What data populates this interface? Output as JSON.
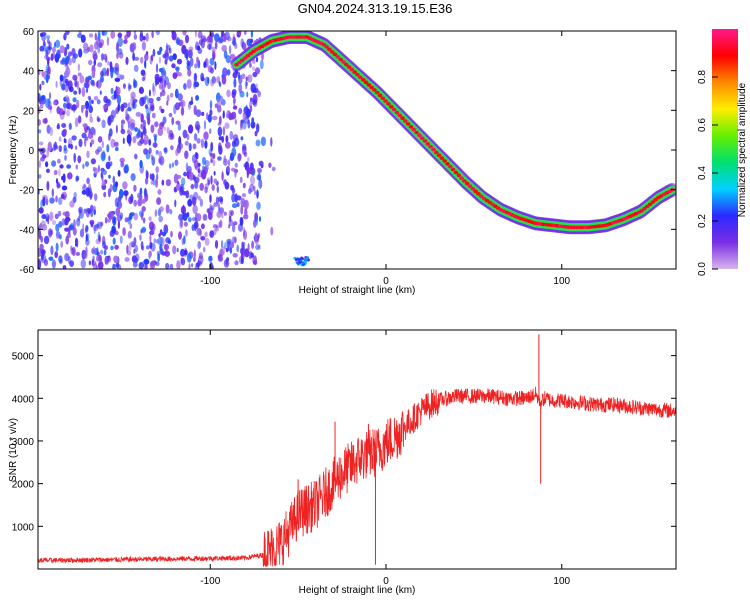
{
  "title": "GN04.2024.313.19.15.E36",
  "colors": {
    "signal": "#ee2222",
    "noise_points": "#7a22ee",
    "frame": "#000000"
  },
  "chart_data": [
    {
      "type": "heatmap",
      "title": "GN04.2024.313.19.15.E36",
      "xlabel": "Height of straight line (km)",
      "ylabel": "Frequency (Hz)",
      "xlim": [
        -198,
        165
      ],
      "ylim": [
        -60,
        60
      ],
      "x_ticks": [
        "-100",
        "0",
        "100"
      ],
      "y_ticks": [
        "-60",
        "-40",
        "-20",
        "0",
        "20",
        "40",
        "60"
      ],
      "colorbar": {
        "label": "Normalized spectral amplitude",
        "range": [
          0,
          1
        ],
        "ticks": [
          "0.0",
          "0.2",
          "0.4",
          "0.6",
          "0.8"
        ],
        "colormap": [
          "#d8b4ee",
          "#7a2ee6",
          "#2a2aff",
          "#00d0ff",
          "#00e070",
          "#66ee00",
          "#ffee00",
          "#ff8800",
          "#ff0000",
          "#ff1a8c"
        ]
      },
      "noise_region": {
        "x_range": [
          -198,
          -72
        ],
        "y_range": [
          -60,
          60
        ]
      },
      "ridge": {
        "x": [
          -85,
          -75,
          -65,
          -55,
          -45,
          -35,
          -25,
          -15,
          -5,
          5,
          15,
          25,
          35,
          45,
          55,
          65,
          75,
          85,
          95,
          105,
          115,
          125,
          135,
          145,
          155,
          163
        ],
        "y": [
          43,
          50,
          55,
          57,
          57,
          53,
          45,
          37,
          29,
          20,
          11,
          2,
          -7,
          -16,
          -24,
          -30,
          -34,
          -37,
          -38,
          -39,
          -39,
          -38,
          -35,
          -31,
          -24,
          -20
        ]
      }
    },
    {
      "type": "line",
      "xlabel": "Height of straight line (km)",
      "ylabel": "SNR (10 * v/v)",
      "xlim": [
        -198,
        165
      ],
      "ylim": [
        0,
        5600
      ],
      "x_ticks": [
        "-100",
        "0",
        "100"
      ],
      "y_ticks": [
        "1000",
        "2000",
        "3000",
        "4000",
        "5000"
      ],
      "series": [
        {
          "x": [
            -198,
            -150,
            -100,
            -80,
            -70,
            -65,
            -60,
            -55,
            -50,
            -45,
            -40,
            -35,
            -30,
            -25,
            -20,
            -15,
            -10,
            -5,
            0,
            5,
            10,
            15,
            20,
            25,
            30,
            40,
            50,
            60,
            70,
            80,
            85,
            88,
            90,
            95,
            100,
            110,
            120,
            130,
            140,
            150,
            165
          ],
          "y": [
            200,
            220,
            250,
            260,
            330,
            450,
            600,
            900,
            1300,
            1400,
            1500,
            1750,
            2000,
            2250,
            2400,
            2600,
            2700,
            2750,
            2950,
            3100,
            3300,
            3500,
            3700,
            3850,
            3950,
            4050,
            4050,
            4050,
            4000,
            4000,
            4100,
            3900,
            4000,
            3950,
            3950,
            3900,
            3850,
            3850,
            3800,
            3750,
            3700
          ]
        }
      ],
      "notable_points": [
        {
          "x": -50,
          "y": 2100
        },
        {
          "x": -50,
          "y": 900
        },
        {
          "x": -29,
          "y": 3450
        },
        {
          "x": -10,
          "y": 3400
        },
        {
          "x": -6,
          "y": 100
        },
        {
          "x": 87,
          "y": 5500
        },
        {
          "x": 88,
          "y": 2000
        }
      ]
    }
  ]
}
